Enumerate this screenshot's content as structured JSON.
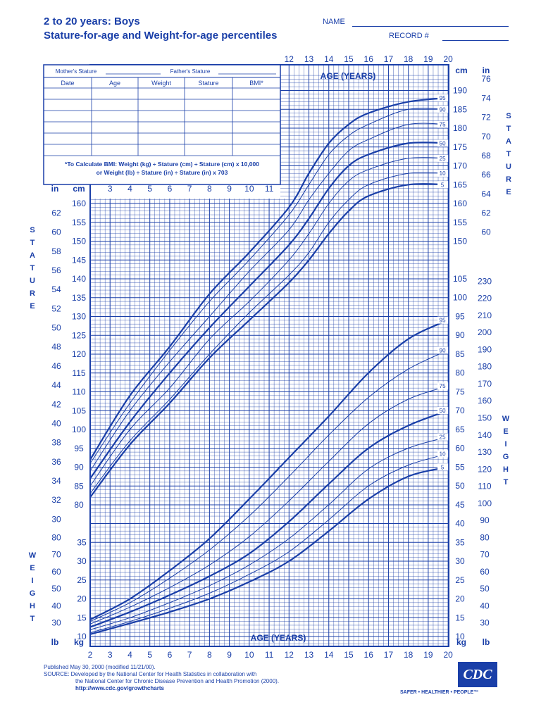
{
  "header": {
    "title": "2 to 20 years: Boys",
    "subtitle": "Stature-for-age and Weight-for-age percentiles",
    "name_label": "NAME",
    "record_label": "RECORD #"
  },
  "record_table": {
    "mothers_stature": "Mother's Stature",
    "fathers_stature": "Father's Stature",
    "columns": [
      "Date",
      "Age",
      "Weight",
      "Stature",
      "BMI*"
    ],
    "bmi_note_1": "*To Calculate BMI: Weight (kg) ÷ Stature (cm) ÷ Stature (cm) x 10,000",
    "bmi_note_2": "or Weight (lb) ÷ Stature (in) ÷ Stature (in) x 703"
  },
  "labels": {
    "age_years": "AGE (YEARS)",
    "stature_vertical": "STATURE",
    "weight_vertical": "WEIGHT",
    "in": "in",
    "cm": "cm",
    "lb": "lb",
    "kg": "kg"
  },
  "footer": {
    "line1": "Published May 30, 2000 (modified 11/21/00).",
    "line2": "SOURCE: Developed by the National Center for Health Statistics in collaboration with",
    "line3": "the National Center for Chronic Disease Prevention and Health Promotion (2000).",
    "line4": "http://www.cdc.gov/growthcharts",
    "logo": "CDC",
    "tagline": "SAFER • HEALTHIER • PEOPLE™"
  },
  "colors": {
    "ink": "#1a3fa8",
    "background": "#ffffff"
  },
  "chart_data": [
    {
      "type": "line",
      "title": "Stature-for-age",
      "xlabel": "AGE (YEARS)",
      "ylabel": "STATURE",
      "xlim": [
        2,
        20
      ],
      "ylim_cm": [
        75,
        195
      ],
      "x": [
        2,
        4,
        6,
        8,
        10,
        12,
        13,
        14,
        15,
        16,
        18,
        20
      ],
      "series": [
        {
          "name": "5",
          "values": [
            82,
            96,
            107,
            119,
            129,
            139,
            145,
            152,
            158,
            162,
            165,
            165
          ]
        },
        {
          "name": "10",
          "values": [
            83,
            97,
            108,
            120,
            131,
            141,
            147,
            155,
            161,
            165,
            168,
            168
          ]
        },
        {
          "name": "25",
          "values": [
            85,
            100,
            111,
            124,
            134,
            145,
            152,
            160,
            166,
            169,
            172,
            172
          ]
        },
        {
          "name": "50",
          "values": [
            87,
            102,
            115,
            127,
            138,
            149,
            156,
            164,
            170,
            173,
            176,
            176
          ]
        },
        {
          "name": "75",
          "values": [
            89,
            105,
            118,
            130,
            142,
            153,
            161,
            168,
            174,
            177,
            181,
            181
          ]
        },
        {
          "name": "90",
          "values": [
            91,
            107,
            121,
            134,
            145,
            157,
            165,
            173,
            178,
            181,
            185,
            185
          ]
        },
        {
          "name": "95",
          "values": [
            92,
            109,
            122,
            136,
            147,
            159,
            168,
            176,
            181,
            184,
            187,
            188
          ]
        }
      ],
      "y_ticks_cm_left": [
        80,
        85,
        90,
        95,
        100,
        105,
        110,
        115,
        120,
        125,
        130,
        135,
        140,
        145,
        150,
        155,
        160
      ],
      "y_ticks_in_left": [
        30,
        32,
        34,
        36,
        38,
        40,
        42,
        44,
        46,
        48,
        50,
        52,
        54,
        56,
        58,
        60,
        62
      ],
      "y_ticks_cm_right": [
        150,
        155,
        160,
        165,
        170,
        175,
        180,
        185,
        190
      ],
      "y_ticks_in_right": [
        60,
        62,
        64,
        66,
        68,
        70,
        72,
        74,
        76
      ],
      "x_ticks_top": [
        12,
        13,
        14,
        15,
        16,
        17,
        18,
        19,
        20
      ],
      "x_ticks_inner": [
        3,
        4,
        5,
        6,
        7,
        8,
        9,
        10,
        11
      ]
    },
    {
      "type": "line",
      "title": "Weight-for-age",
      "xlabel": "AGE (YEARS)",
      "ylabel": "WEIGHT",
      "xlim": [
        2,
        20
      ],
      "ylim_kg": [
        5,
        105
      ],
      "x": [
        2,
        4,
        6,
        8,
        10,
        12,
        14,
        16,
        18,
        20
      ],
      "series": [
        {
          "name": "5",
          "values": [
            10.6,
            13.5,
            16.5,
            20,
            24.5,
            30,
            38,
            46.5,
            52.5,
            55
          ]
        },
        {
          "name": "10",
          "values": [
            11,
            14,
            17.5,
            21.5,
            26.5,
            32.5,
            41,
            50,
            55.5,
            58.5
          ]
        },
        {
          "name": "25",
          "values": [
            11.8,
            15,
            19,
            23.5,
            29,
            36,
            45,
            54.5,
            60,
            63
          ]
        },
        {
          "name": "50",
          "values": [
            12.5,
            16.5,
            21,
            26,
            32,
            40.5,
            50.5,
            60,
            66,
            70
          ]
        },
        {
          "name": "75",
          "values": [
            13.3,
            17.8,
            23,
            29,
            36.5,
            46,
            56.5,
            66.5,
            73,
            76.5
          ]
        },
        {
          "name": "90",
          "values": [
            14,
            19,
            25.5,
            33,
            42,
            52.5,
            63.5,
            73.5,
            81,
            86
          ]
        },
        {
          "name": "95",
          "values": [
            14.5,
            20,
            27.5,
            36,
            46.5,
            57.5,
            68.5,
            80,
            89,
            94
          ]
        }
      ],
      "y_ticks_kg_left": [
        10,
        15,
        20,
        25,
        30,
        35
      ],
      "y_ticks_lb_left": [
        30,
        40,
        50,
        60,
        70,
        80
      ],
      "y_ticks_kg_right": [
        10,
        15,
        20,
        25,
        30,
        35,
        40,
        45,
        50,
        55,
        60,
        65,
        70,
        75,
        80,
        85,
        90,
        95,
        100,
        105
      ],
      "y_ticks_lb_right": [
        30,
        40,
        50,
        60,
        70,
        80,
        90,
        100,
        110,
        120,
        130,
        140,
        150,
        160,
        170,
        180,
        190,
        200,
        210,
        220,
        230
      ],
      "x_ticks_bottom": [
        2,
        3,
        4,
        5,
        6,
        7,
        8,
        9,
        10,
        11,
        12,
        13,
        14,
        15,
        16,
        17,
        18,
        19,
        20
      ]
    }
  ]
}
